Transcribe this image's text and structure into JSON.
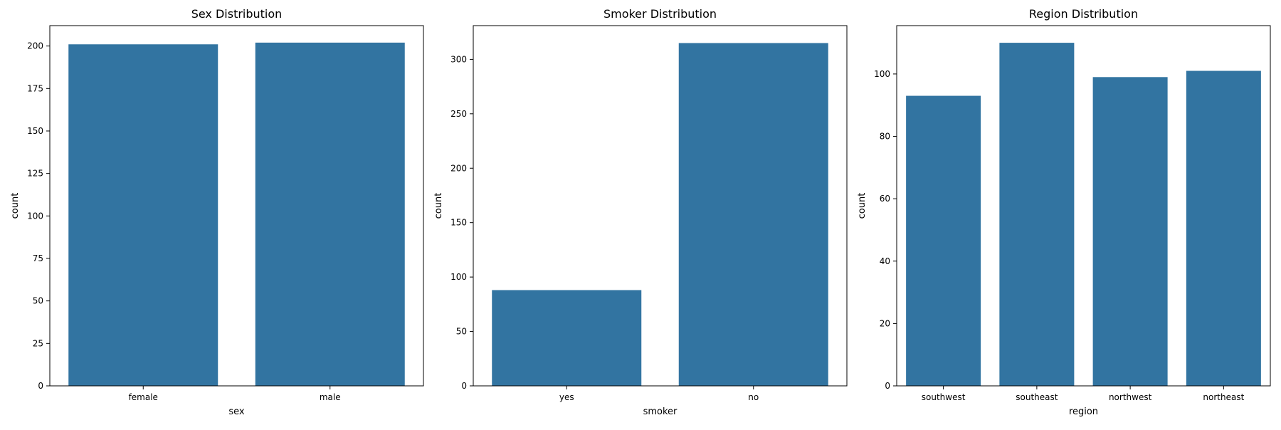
{
  "colors": {
    "bar": "#3274a1",
    "axis": "#000000",
    "background": "#ffffff"
  },
  "chart_data": [
    {
      "type": "bar",
      "title": "Sex Distribution",
      "xlabel": "sex",
      "ylabel": "count",
      "categories": [
        "female",
        "male"
      ],
      "values": [
        201,
        202
      ],
      "ylim": [
        0,
        212
      ],
      "yticks": [
        0,
        25,
        50,
        75,
        100,
        125,
        150,
        175,
        200
      ],
      "grid": false
    },
    {
      "type": "bar",
      "title": "Smoker Distribution",
      "xlabel": "smoker",
      "ylabel": "count",
      "categories": [
        "yes",
        "no"
      ],
      "values": [
        88,
        315
      ],
      "ylim": [
        0,
        331
      ],
      "yticks": [
        0,
        50,
        100,
        150,
        200,
        250,
        300
      ],
      "grid": false
    },
    {
      "type": "bar",
      "title": "Region Distribution",
      "xlabel": "region",
      "ylabel": "count",
      "categories": [
        "southwest",
        "southeast",
        "northwest",
        "northeast"
      ],
      "values": [
        93,
        110,
        99,
        101
      ],
      "ylim": [
        0,
        115.5
      ],
      "yticks": [
        0,
        20,
        40,
        60,
        80,
        100
      ],
      "grid": false
    }
  ]
}
